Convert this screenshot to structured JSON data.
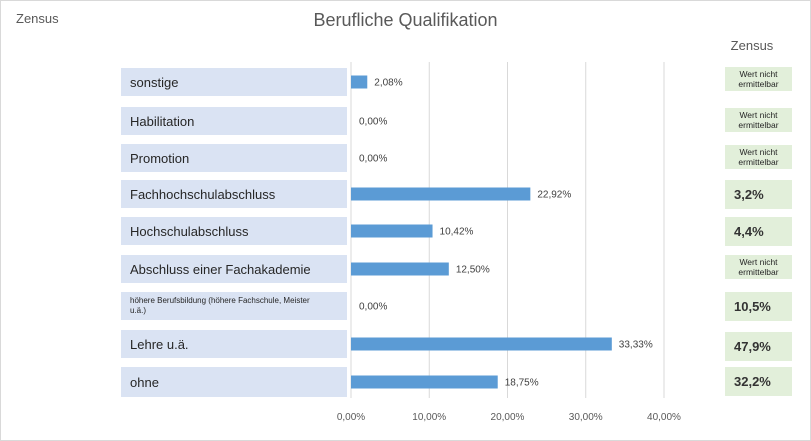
{
  "header": {
    "corner_label": "Zensus",
    "zensus_column_title": "Zensus"
  },
  "chart_data": {
    "type": "bar",
    "title": "Berufliche Qualifikation",
    "orientation": "horizontal",
    "categories": [
      "sonstige",
      "Habilitation",
      "Promotion",
      "Fachhochschulabschluss",
      "Hochschulabschluss",
      "Abschluss einer Fachakademie",
      "höhere Berufsbildung (höhere Fachschule, Meister u.ä.)",
      "Lehre u.ä.",
      "ohne"
    ],
    "values": [
      2.08,
      0.0,
      0.0,
      22.92,
      10.42,
      12.5,
      0.0,
      33.33,
      18.75
    ],
    "value_labels": [
      "2,08%",
      "0,00%",
      "0,00%",
      "22,92%",
      "10,42%",
      "12,50%",
      "0,00%",
      "33,33%",
      "18,75%"
    ],
    "xlim": [
      0,
      40
    ],
    "x_ticks": [
      "0,00%",
      "10,00%",
      "20,00%",
      "30,00%",
      "40,00%"
    ],
    "grid": true,
    "bar_color": "#5b9bd5",
    "category_box_color": "#dae3f3",
    "zensus_box_color": "#e2efda",
    "zensus_values": [
      "Wert nicht ermittelbar",
      "Wert nicht ermittelbar",
      "Wert nicht ermittelbar",
      "3,2%",
      "4,4%",
      "Wert nicht ermittelbar",
      "10,5%",
      "47,9%",
      "32,2%"
    ]
  }
}
